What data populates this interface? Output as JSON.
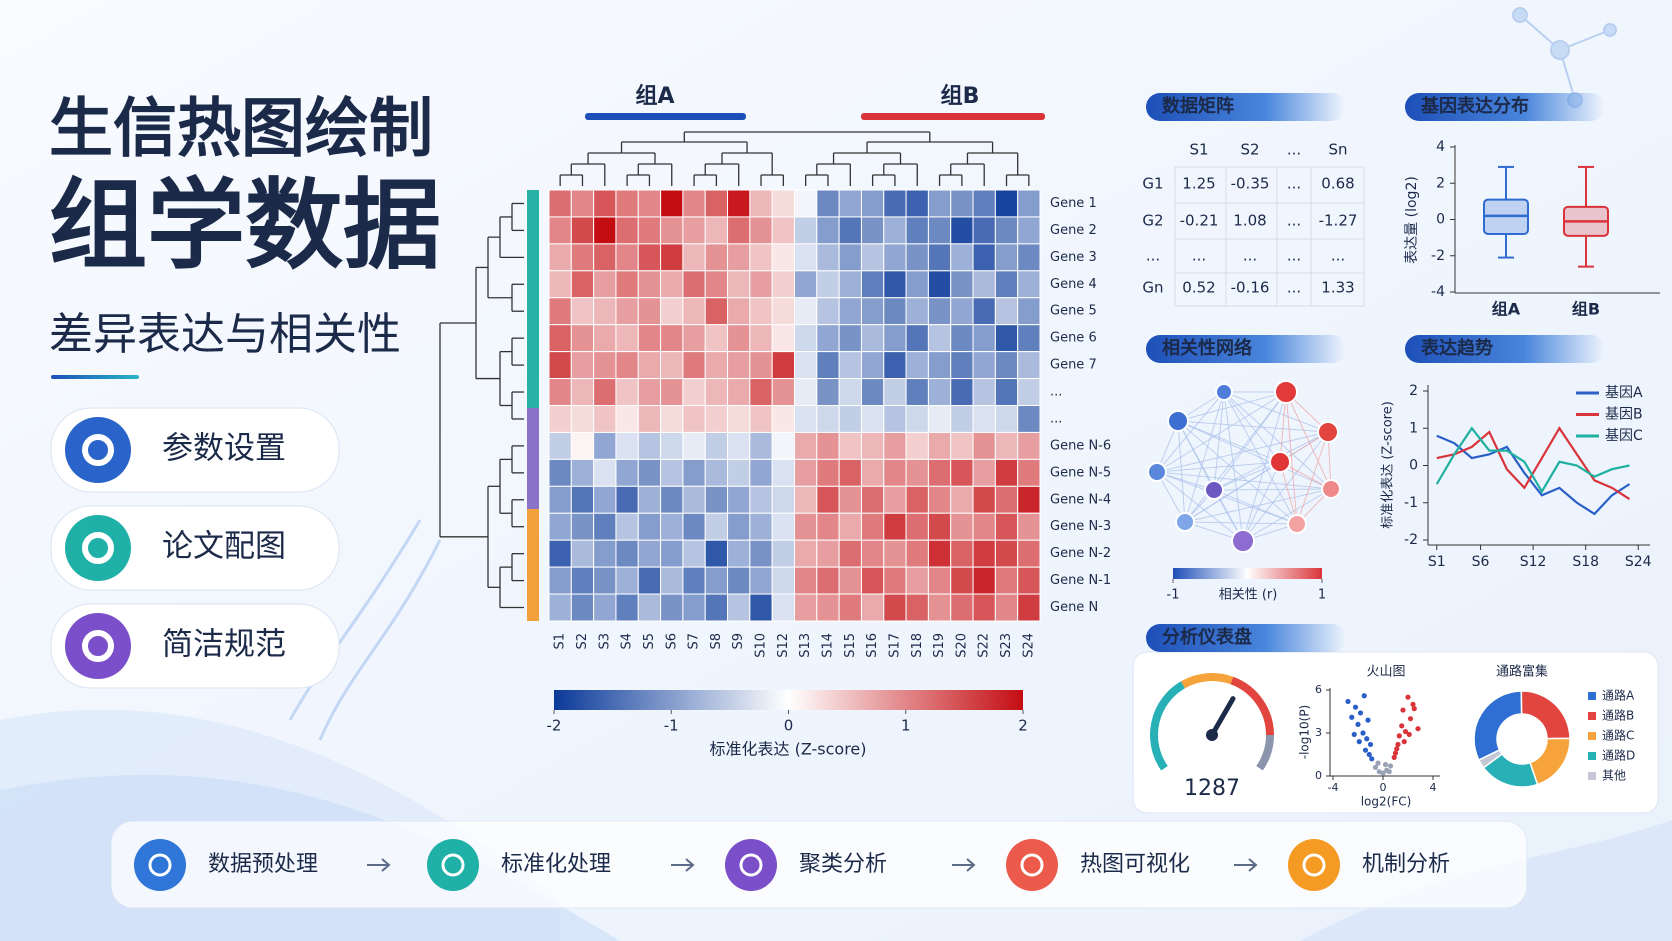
{
  "header": {
    "title": "生信热图绘制",
    "headline": "组学数据",
    "subtitle": "差异表达与相关性"
  },
  "features": [
    "参数设置",
    "论文配图",
    "简洁规范"
  ],
  "heatmap": {
    "groups": [
      "组A",
      "组B"
    ],
    "columns": [
      "S1",
      "S2",
      "S3",
      "S4",
      "S5",
      "S6",
      "S7",
      "S8",
      "S9",
      "S10",
      "S12",
      "S13",
      "S14",
      "S15",
      "S16",
      "S17",
      "S18",
      "S19",
      "S20",
      "S22",
      "S23",
      "S24"
    ],
    "rows": [
      "Gene 1",
      "Gene 2",
      "Gene 3",
      "Gene 4",
      "Gene 5",
      "Gene 6",
      "Gene 7",
      "...",
      "...",
      "Gene N-6",
      "Gene N-5",
      "Gene N-4",
      "Gene N-3",
      "Gene N-2",
      "Gene N-1",
      "Gene N"
    ],
    "values": [
      [
        1.2,
        1.0,
        1.4,
        1.1,
        1.0,
        2.0,
        1.0,
        1.3,
        1.9,
        0.6,
        0.3,
        -0.1,
        -1.2,
        -0.9,
        -1.0,
        -1.5,
        -1.6,
        -1.0,
        -1.1,
        -1.3,
        -1.9,
        -1.0
      ],
      [
        1.0,
        1.5,
        2.1,
        1.2,
        1.1,
        0.9,
        0.8,
        0.6,
        1.2,
        0.9,
        0.5,
        -0.5,
        -1.0,
        -1.4,
        -1.1,
        -0.8,
        -1.3,
        -1.2,
        -1.8,
        -1.5,
        -1.2,
        -0.9
      ],
      [
        0.7,
        1.1,
        1.3,
        1.0,
        1.4,
        1.6,
        0.6,
        0.9,
        0.8,
        0.5,
        0.2,
        -0.3,
        -0.7,
        -1.0,
        -0.6,
        -0.9,
        -1.1,
        -1.4,
        -0.8,
        -1.6,
        -1.0,
        -1.2
      ],
      [
        0.6,
        1.3,
        0.8,
        1.1,
        0.9,
        0.7,
        1.2,
        1.0,
        0.6,
        0.8,
        0.4,
        -0.9,
        -0.5,
        -0.8,
        -1.3,
        -1.7,
        -1.0,
        -1.8,
        -1.1,
        -0.7,
        -1.3,
        -0.8
      ],
      [
        1.1,
        0.5,
        0.6,
        0.8,
        0.9,
        0.4,
        0.6,
        1.3,
        0.7,
        0.5,
        0.3,
        -0.2,
        -0.6,
        -0.9,
        -1.0,
        -1.2,
        -0.8,
        -1.1,
        -0.9,
        -1.5,
        -0.6,
        -1.0
      ],
      [
        1.3,
        0.9,
        0.7,
        0.6,
        1.0,
        1.0,
        0.8,
        0.5,
        0.9,
        0.6,
        0.2,
        -0.4,
        -0.9,
        -1.1,
        -0.7,
        -1.0,
        -1.4,
        -0.6,
        -1.2,
        -1.0,
        -1.7,
        -1.3
      ],
      [
        1.5,
        0.8,
        0.9,
        1.0,
        0.7,
        0.6,
        1.1,
        0.7,
        0.8,
        0.9,
        1.6,
        -0.3,
        -1.3,
        -0.6,
        -0.9,
        -1.6,
        -0.8,
        -1.0,
        -1.3,
        -0.9,
        -1.2,
        -0.7
      ],
      [
        1.0,
        0.6,
        1.2,
        0.5,
        0.8,
        0.9,
        0.4,
        0.6,
        0.7,
        1.3,
        0.9,
        -0.2,
        -1.1,
        -0.4,
        -1.2,
        -0.5,
        -1.3,
        -0.8,
        -1.5,
        -0.6,
        -1.4,
        -0.5
      ],
      [
        0.4,
        0.3,
        0.5,
        0.2,
        0.6,
        0.3,
        0.5,
        0.4,
        0.3,
        0.5,
        0.2,
        -0.3,
        -0.4,
        -0.5,
        -0.3,
        -0.6,
        -0.4,
        -0.2,
        -0.5,
        -0.3,
        -0.4,
        -1.2
      ],
      [
        -0.5,
        0.1,
        -0.9,
        -0.3,
        -0.6,
        -0.4,
        -0.2,
        -0.5,
        -0.3,
        -0.7,
        -0.1,
        0.7,
        0.9,
        0.5,
        0.6,
        0.8,
        0.4,
        0.7,
        0.5,
        0.9,
        0.6,
        0.8
      ],
      [
        -1.2,
        -0.8,
        -0.3,
        -0.9,
        -1.1,
        -0.6,
        -1.0,
        -0.7,
        -0.5,
        -0.9,
        -0.3,
        0.8,
        1.1,
        1.3,
        0.7,
        1.0,
        0.9,
        1.2,
        1.4,
        0.8,
        1.6,
        1.1
      ],
      [
        -1.0,
        -1.4,
        -0.9,
        -1.5,
        -0.8,
        -1.2,
        -0.7,
        -1.1,
        -0.9,
        -0.6,
        -0.4,
        0.6,
        1.4,
        0.9,
        1.2,
        0.8,
        1.3,
        1.0,
        0.7,
        1.5,
        1.2,
        1.8
      ],
      [
        -0.9,
        -1.1,
        -1.3,
        -0.6,
        -1.0,
        -0.8,
        -1.2,
        -0.5,
        -1.0,
        -0.8,
        -0.3,
        0.9,
        1.0,
        0.7,
        1.1,
        1.6,
        1.2,
        1.5,
        0.9,
        1.0,
        1.4,
        0.9
      ],
      [
        -1.6,
        -0.7,
        -1.0,
        -1.2,
        -0.9,
        -1.0,
        -0.6,
        -1.7,
        -0.8,
        -1.1,
        -0.5,
        0.7,
        0.8,
        1.2,
        1.0,
        0.9,
        1.1,
        1.7,
        1.3,
        1.6,
        1.5,
        1.2
      ],
      [
        -1.0,
        -1.3,
        -1.1,
        -0.8,
        -1.5,
        -0.7,
        -1.3,
        -1.0,
        -1.2,
        -0.9,
        -0.4,
        1.0,
        1.2,
        0.9,
        1.4,
        1.1,
        0.8,
        1.0,
        1.5,
        1.8,
        1.1,
        1.4
      ],
      [
        -0.8,
        -1.2,
        -0.9,
        -1.3,
        -0.7,
        -1.1,
        -1.0,
        -1.4,
        -0.6,
        -1.7,
        -0.3,
        0.8,
        0.9,
        1.1,
        0.7,
        1.5,
        1.3,
        0.9,
        1.2,
        1.4,
        1.0,
        1.6
      ]
    ],
    "colorscale": [
      "#0b3a9a",
      "#ffffff",
      "#c40d12"
    ],
    "colorbar": {
      "lim": [
        -2,
        2
      ],
      "ticks": [
        -2,
        -1,
        0,
        1,
        2
      ],
      "label": "标准化表达 (Z-score)"
    }
  },
  "matrix": {
    "title": "数据矩阵",
    "header": [
      "S1",
      "S2",
      "...",
      "Sn"
    ],
    "rows": [
      {
        "label": "G1",
        "cells": [
          1.25,
          -0.35,
          "...",
          0.68
        ]
      },
      {
        "label": "G2",
        "cells": [
          -0.21,
          1.08,
          "...",
          -1.27
        ]
      },
      {
        "label": "...",
        "cells": [
          "...",
          "...",
          "...",
          "..."
        ]
      },
      {
        "label": "Gn",
        "cells": [
          0.52,
          -0.16,
          "...",
          1.33
        ]
      }
    ]
  },
  "boxplot": {
    "title": "基因表达分布",
    "type": "box",
    "categories": [
      "组A",
      "组B"
    ],
    "colors": [
      "#2f6bd0",
      "#d9343a"
    ],
    "ylabel": "表达量 (log2)",
    "ylim": [
      -4,
      4
    ],
    "yticks": [
      -4,
      -2,
      0,
      2,
      4
    ],
    "boxes": [
      {
        "min": -2.1,
        "q1": -0.8,
        "median": 0.2,
        "q3": 1.1,
        "max": 2.9
      },
      {
        "min": -2.6,
        "q1": -0.9,
        "median": -0.1,
        "q3": 0.7,
        "max": 2.9
      }
    ]
  },
  "network": {
    "title": "相关性网络",
    "colorbar_ticks": [
      -1,
      1
    ],
    "colorbar_label": "相关性 (r)"
  },
  "trend": {
    "title": "表达趋势",
    "type": "line",
    "ylabel": "标准化表达 (Z-score)",
    "x": [
      1,
      3,
      5,
      7,
      9,
      11,
      13,
      15,
      17,
      19,
      21,
      23
    ],
    "xlim": [
      0,
      25
    ],
    "xticks": [
      {
        "value": 1,
        "label": "S1"
      },
      {
        "value": 6,
        "label": "S6"
      },
      {
        "value": 12,
        "label": "S12"
      },
      {
        "value": 18,
        "label": "S18"
      },
      {
        "value": 24,
        "label": "S24"
      }
    ],
    "ylim": [
      -2,
      2
    ],
    "yticks": [
      -2,
      -1,
      0,
      1,
      2
    ],
    "series": [
      {
        "name": "基因A",
        "color": "#2a5fc8",
        "values": [
          0.8,
          0.6,
          0.2,
          0.3,
          0.5,
          -0.2,
          -0.8,
          -0.6,
          -1.0,
          -1.3,
          -0.8,
          -0.5
        ]
      },
      {
        "name": "基因B",
        "color": "#d9343a",
        "values": [
          0.2,
          0.3,
          0.5,
          0.9,
          -0.1,
          -0.6,
          0.2,
          1.0,
          0.3,
          -0.4,
          -0.6,
          -0.9
        ]
      },
      {
        "name": "基因C",
        "color": "#1fb0a0",
        "values": [
          -0.5,
          0.3,
          1.0,
          0.4,
          0.4,
          0.1,
          -0.7,
          0.1,
          0.0,
          -0.3,
          -0.1,
          0.0
        ]
      }
    ]
  },
  "dashboard": {
    "title": "分析仪表盘",
    "gauge_value": 1287,
    "volcano": {
      "type": "scatter",
      "title": "火山图",
      "xlabel": "log2(FC)",
      "ylabel": "-log10(P)",
      "xlim": [
        -4,
        4
      ],
      "xticks": [
        -4,
        0,
        4
      ],
      "ylim": [
        0,
        6
      ],
      "yticks": [
        0,
        3,
        6
      ],
      "series": [
        {
          "color": "#2a5fc8",
          "x": [
            -2.8,
            -2.5,
            -2.2,
            -2.0,
            -1.8,
            -1.6,
            -1.5,
            -1.3,
            -1.2,
            -1.0,
            -2.3,
            -1.9,
            -1.4,
            -1.1,
            -0.9
          ],
          "y": [
            5.2,
            4.1,
            4.8,
            3.6,
            4.4,
            3.0,
            5.6,
            2.6,
            3.9,
            2.2,
            2.9,
            2.4,
            1.8,
            1.5,
            1.2
          ]
        },
        {
          "color": "#d9343a",
          "x": [
            0.9,
            1.1,
            1.3,
            1.5,
            1.6,
            1.8,
            2.0,
            2.2,
            2.5,
            2.8,
            1.2,
            1.7,
            2.1,
            2.4,
            1.0
          ],
          "y": [
            1.3,
            1.9,
            2.8,
            3.5,
            4.6,
            3.1,
            5.5,
            4.0,
            4.7,
            3.3,
            2.2,
            2.4,
            2.9,
            5.0,
            1.6
          ]
        },
        {
          "color": "#9aa3b5",
          "x": [
            -0.6,
            -0.3,
            0,
            0.3,
            0.6,
            -0.4,
            0.2,
            0.5
          ],
          "y": [
            0.6,
            0.3,
            0.2,
            0.4,
            0.7,
            0.9,
            0.8,
            0.3
          ]
        }
      ]
    },
    "donut": {
      "type": "pie",
      "title": "通路富集",
      "categories": [
        "通路A",
        "通路B",
        "通路C",
        "通路D",
        "其他"
      ],
      "values": [
        32,
        25,
        20,
        20,
        3
      ],
      "colors": [
        "#2f6fd3",
        "#e2453f",
        "#f5a33a",
        "#27b0b5",
        "#c3c8d4"
      ]
    }
  },
  "pipeline": [
    "数据预处理",
    "标准化处理",
    "聚类分析",
    "热图可视化",
    "机制分析"
  ]
}
